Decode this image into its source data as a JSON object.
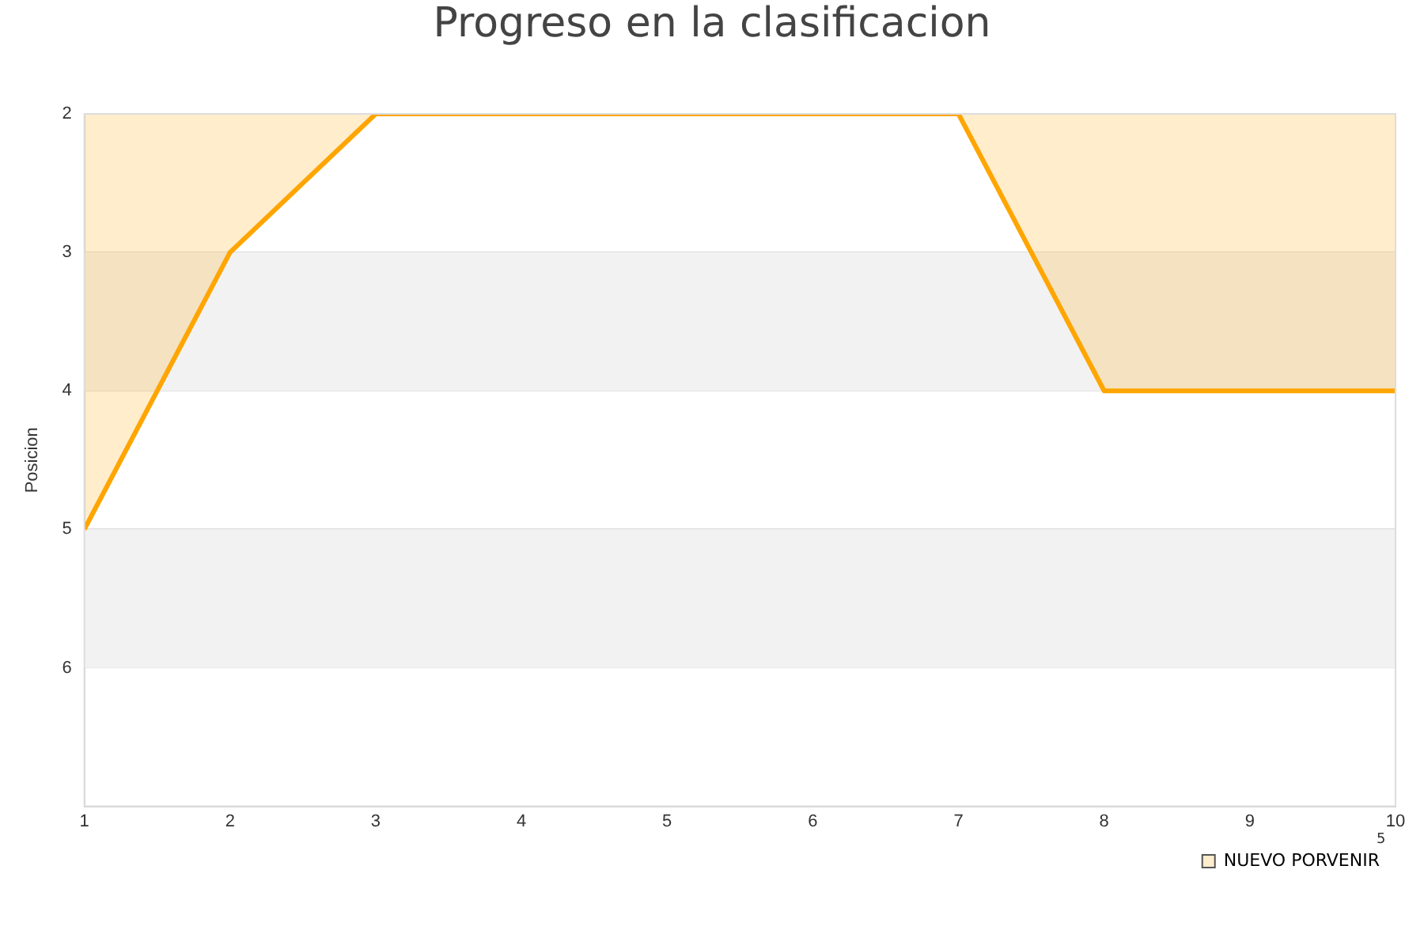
{
  "chart_data": {
    "type": "area",
    "title": "Progreso en la clasificacion",
    "ylabel": "Posicion",
    "x": [
      1,
      2,
      3,
      4,
      5,
      6,
      7,
      8,
      9,
      10
    ],
    "series": [
      {
        "name": "NUEVO PORVENIR",
        "color": "#ffa500",
        "values": [
          5,
          3,
          2,
          2,
          2,
          2,
          2,
          4,
          4,
          4
        ]
      }
    ],
    "xlim": [
      1,
      10
    ],
    "xticks": [
      1,
      2,
      3,
      4,
      5,
      6,
      7,
      8,
      9,
      10
    ],
    "ylim": [
      7,
      2
    ],
    "yticks": [
      2,
      3,
      4,
      5,
      6
    ],
    "bands": [
      {
        "axis": "y",
        "from": 3,
        "to": 4,
        "color": "#f2f2f2"
      },
      {
        "axis": "y",
        "from": 5,
        "to": 6,
        "color": "#f2f2f2"
      }
    ],
    "grid": "y",
    "legend": "bottom right",
    "marker": "none",
    "line_style": "solid",
    "annotations": [
      "5"
    ]
  }
}
